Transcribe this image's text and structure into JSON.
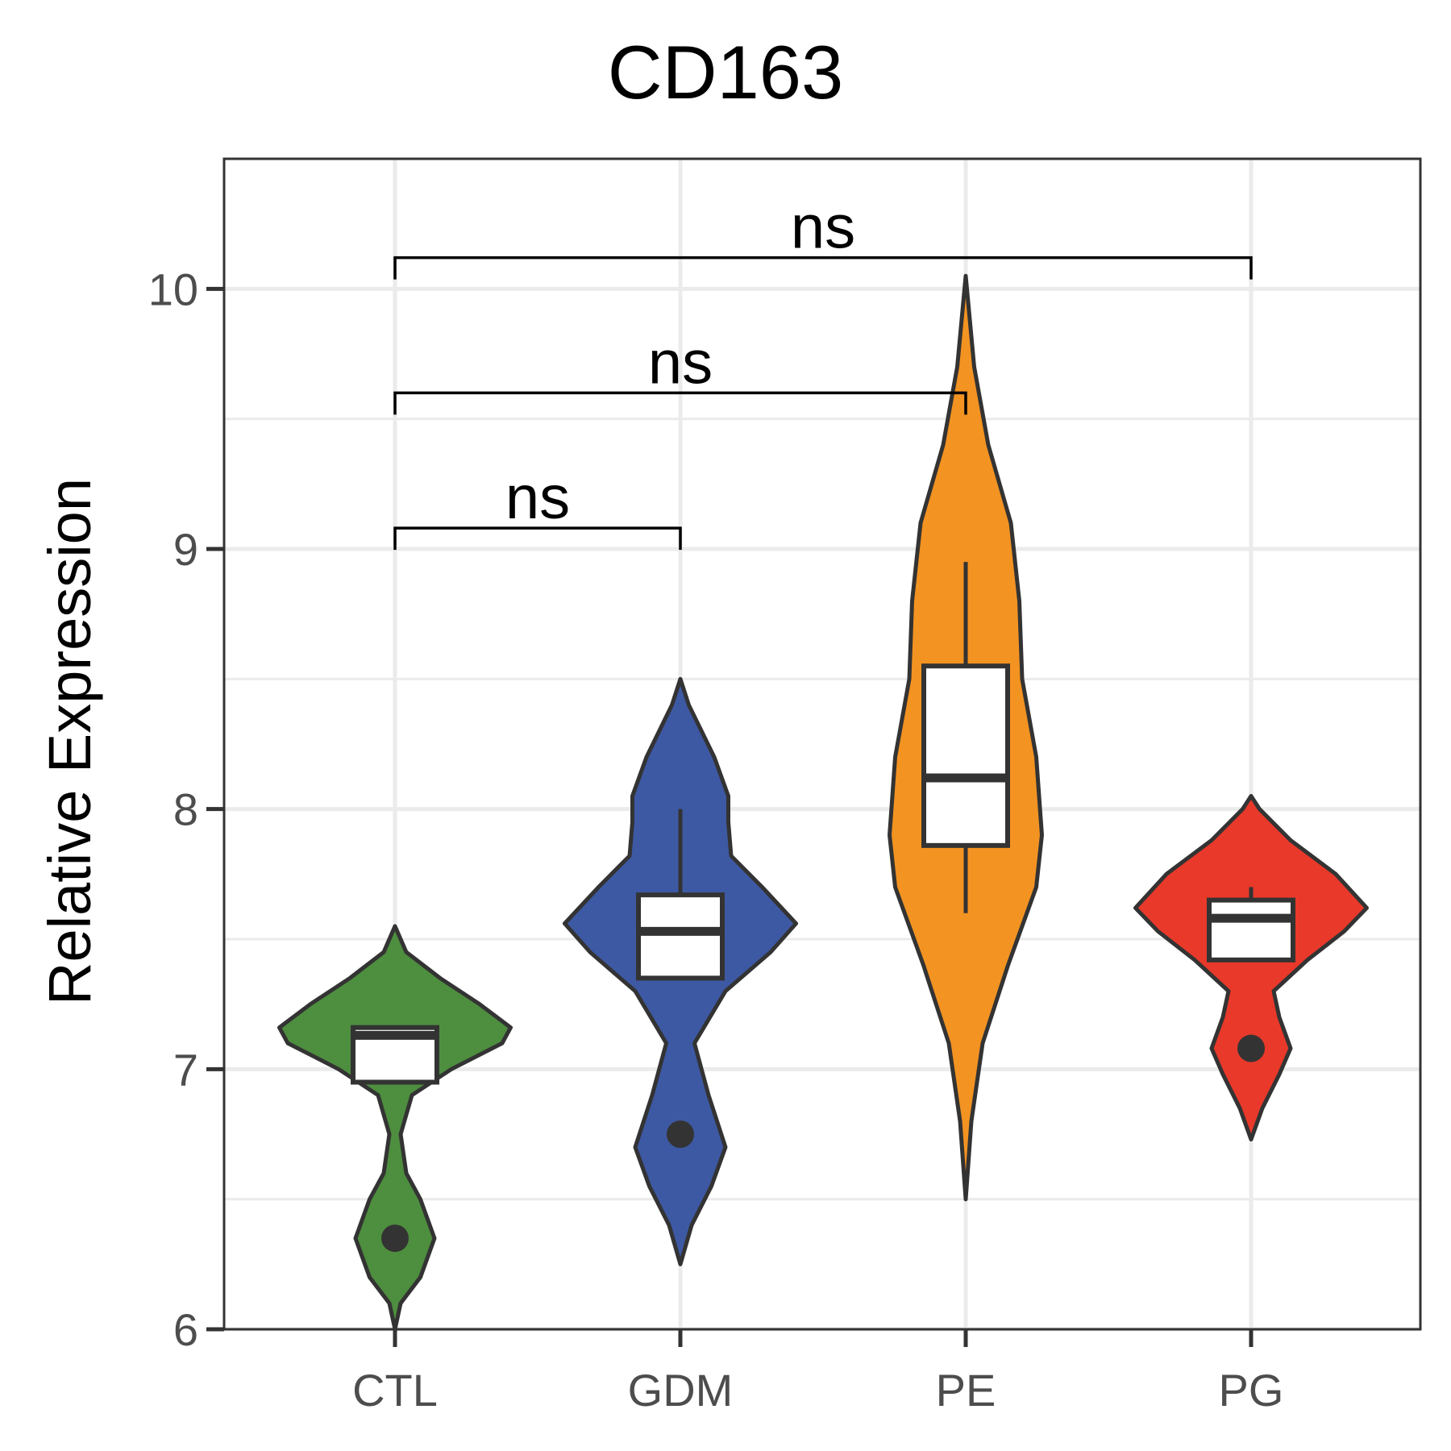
{
  "chart_data": {
    "type": "violin",
    "title": "CD163",
    "xlabel": "",
    "ylabel": "Relative Expression",
    "ylim": [
      6,
      10.5
    ],
    "yticks": [
      "6",
      "7",
      "8",
      "9",
      "10"
    ],
    "categories": [
      "CTL",
      "GDM",
      "PE",
      "PG"
    ],
    "grid": true,
    "legend": "none",
    "groups": [
      {
        "name": "CTL",
        "color": "#4e8e3f",
        "box": {
          "q1": 6.95,
          "median": 7.13,
          "q3": 7.16,
          "whisker_low": 6.95,
          "whisker_high": 7.16
        },
        "outliers": [
          6.35
        ],
        "density": [
          [
            6.0,
            0.0
          ],
          [
            6.1,
            0.02
          ],
          [
            6.2,
            0.09
          ],
          [
            6.35,
            0.14
          ],
          [
            6.5,
            0.09
          ],
          [
            6.6,
            0.04
          ],
          [
            6.75,
            0.02
          ],
          [
            6.9,
            0.06
          ],
          [
            7.0,
            0.2
          ],
          [
            7.1,
            0.38
          ],
          [
            7.16,
            0.41
          ],
          [
            7.25,
            0.3
          ],
          [
            7.35,
            0.16
          ],
          [
            7.45,
            0.04
          ],
          [
            7.55,
            0.0
          ]
        ]
      },
      {
        "name": "GDM",
        "color": "#3e59a3",
        "box": {
          "q1": 7.35,
          "median": 7.53,
          "q3": 7.67,
          "whisker_low": 7.35,
          "whisker_high": 8.0
        },
        "outliers": [
          6.75
        ],
        "density": [
          [
            6.25,
            0.0
          ],
          [
            6.4,
            0.04
          ],
          [
            6.55,
            0.11
          ],
          [
            6.7,
            0.16
          ],
          [
            6.9,
            0.1
          ],
          [
            7.1,
            0.05
          ],
          [
            7.3,
            0.16
          ],
          [
            7.45,
            0.32
          ],
          [
            7.56,
            0.41
          ],
          [
            7.7,
            0.29
          ],
          [
            7.82,
            0.18
          ],
          [
            7.95,
            0.17
          ],
          [
            8.05,
            0.17
          ],
          [
            8.2,
            0.12
          ],
          [
            8.4,
            0.03
          ],
          [
            8.5,
            0.0
          ]
        ]
      },
      {
        "name": "PE",
        "color": "#f39322",
        "box": {
          "q1": 7.86,
          "median": 8.12,
          "q3": 8.55,
          "whisker_low": 7.6,
          "whisker_high": 8.95
        },
        "outliers": [],
        "density": [
          [
            6.5,
            0.0
          ],
          [
            6.8,
            0.02
          ],
          [
            7.1,
            0.06
          ],
          [
            7.4,
            0.15
          ],
          [
            7.7,
            0.25
          ],
          [
            7.9,
            0.27
          ],
          [
            8.2,
            0.25
          ],
          [
            8.5,
            0.2
          ],
          [
            8.8,
            0.19
          ],
          [
            9.1,
            0.16
          ],
          [
            9.4,
            0.08
          ],
          [
            9.7,
            0.03
          ],
          [
            10.05,
            0.0
          ]
        ]
      },
      {
        "name": "PG",
        "color": "#e9392a",
        "box": {
          "q1": 7.42,
          "median": 7.58,
          "q3": 7.65,
          "whisker_low": 7.42,
          "whisker_high": 7.7
        },
        "outliers": [
          7.08
        ],
        "density": [
          [
            6.73,
            0.0
          ],
          [
            6.85,
            0.04
          ],
          [
            6.98,
            0.1
          ],
          [
            7.08,
            0.14
          ],
          [
            7.2,
            0.1
          ],
          [
            7.3,
            0.08
          ],
          [
            7.42,
            0.2
          ],
          [
            7.53,
            0.33
          ],
          [
            7.62,
            0.41
          ],
          [
            7.75,
            0.3
          ],
          [
            7.88,
            0.14
          ],
          [
            8.0,
            0.03
          ],
          [
            8.05,
            0.0
          ]
        ]
      }
    ],
    "comparisons": [
      {
        "from": "CTL",
        "to": "GDM",
        "label": "ns",
        "y": 9.08
      },
      {
        "from": "CTL",
        "to": "PE",
        "label": "ns",
        "y": 9.6
      },
      {
        "from": "CTL",
        "to": "PG",
        "label": "ns",
        "y": 10.12
      }
    ]
  }
}
